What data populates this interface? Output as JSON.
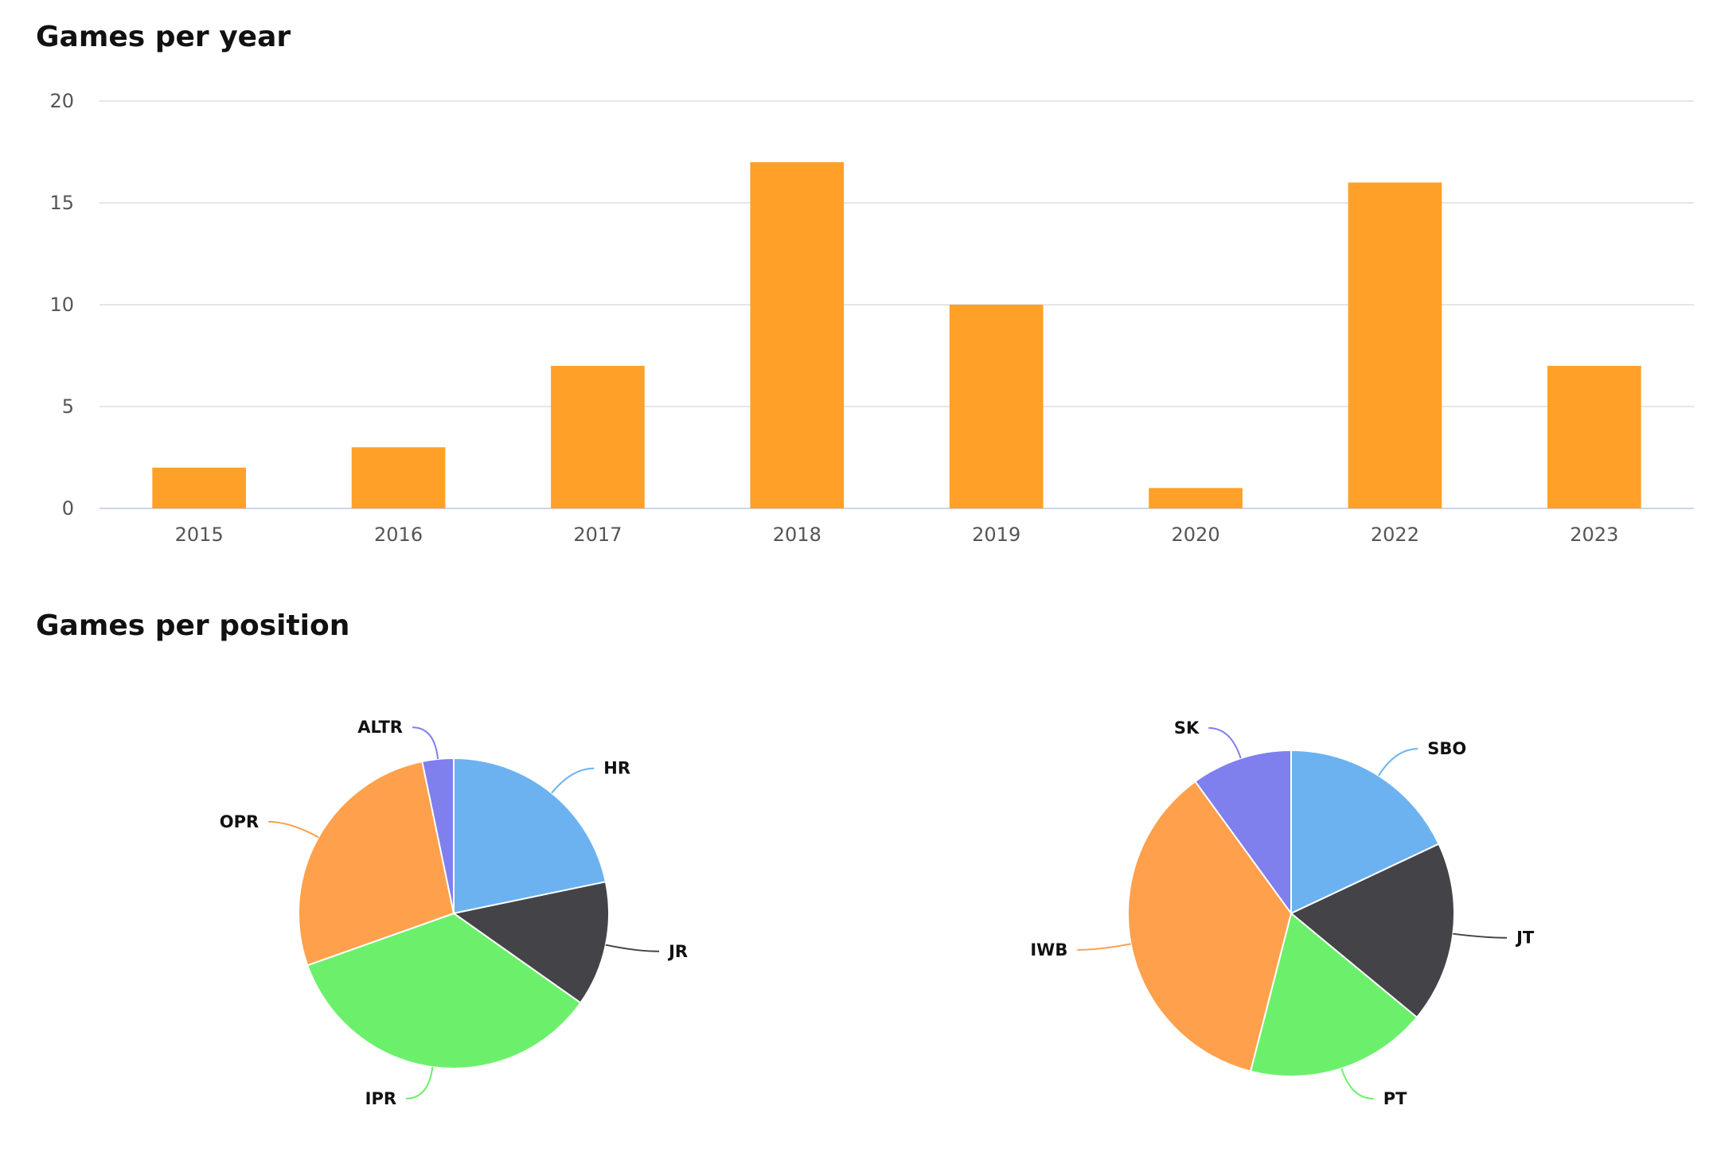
{
  "titles": {
    "year": "Games per year",
    "position": "Games per position"
  },
  "chart_data": [
    {
      "type": "bar",
      "title": "Games per year",
      "categories": [
        "2015",
        "2016",
        "2017",
        "2018",
        "2019",
        "2020",
        "2022",
        "2023"
      ],
      "values": [
        2,
        3,
        7,
        17,
        10,
        1,
        16,
        7
      ],
      "ylim": [
        0,
        20
      ],
      "yticks": [
        0,
        5,
        10,
        15,
        20
      ],
      "grid": true,
      "color": "#FFA028",
      "xlabel": "",
      "ylabel": ""
    },
    {
      "type": "pie",
      "labels": [
        "HR",
        "JR",
        "IPR",
        "OPR",
        "ALTR"
      ],
      "values": [
        20,
        12,
        32,
        25,
        3
      ],
      "colors": [
        "#6CB2F0",
        "#434348",
        "#6CF06C",
        "#FFA04C",
        "#7F7FEE"
      ]
    },
    {
      "type": "pie",
      "labels": [
        "SBO",
        "JT",
        "PT",
        "IWB",
        "SK"
      ],
      "values": [
        9,
        9,
        9,
        18,
        5
      ],
      "colors": [
        "#6CB2F0",
        "#434348",
        "#6CF06C",
        "#FFA04C",
        "#7F7FEE"
      ]
    }
  ]
}
